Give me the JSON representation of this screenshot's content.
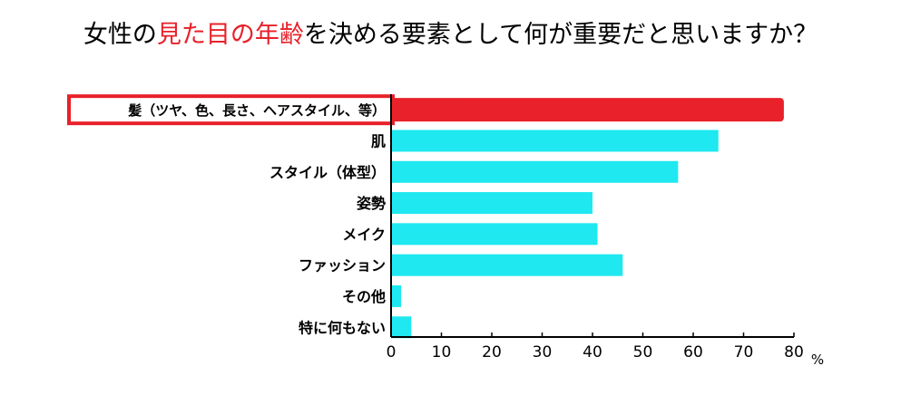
{
  "title": {
    "before": "女性の",
    "highlight": "見た目の年齢",
    "after": "を決める要素として何が重要だと思いますか？"
  },
  "colors": {
    "highlight": "#e8212a",
    "bar": "#1fe8f0",
    "bar_highlight": "#e8212a",
    "axis": "#000000"
  },
  "chart_data": {
    "type": "bar",
    "orientation": "horizontal",
    "categories": [
      "髪（ツヤ、色、長さ、ヘアスタイル、等）",
      "肌",
      "スタイル（体型）",
      "姿勢",
      "メイク",
      "ファッション",
      "その他",
      "特に何もない"
    ],
    "values": [
      78,
      65,
      57,
      40,
      41,
      46,
      2,
      4
    ],
    "highlighted_category_index": 0,
    "xlim": [
      0,
      80
    ],
    "xticks": [
      0,
      10,
      20,
      30,
      40,
      50,
      60,
      70,
      80
    ],
    "xunit": "%",
    "grid": false,
    "legend": "none"
  }
}
